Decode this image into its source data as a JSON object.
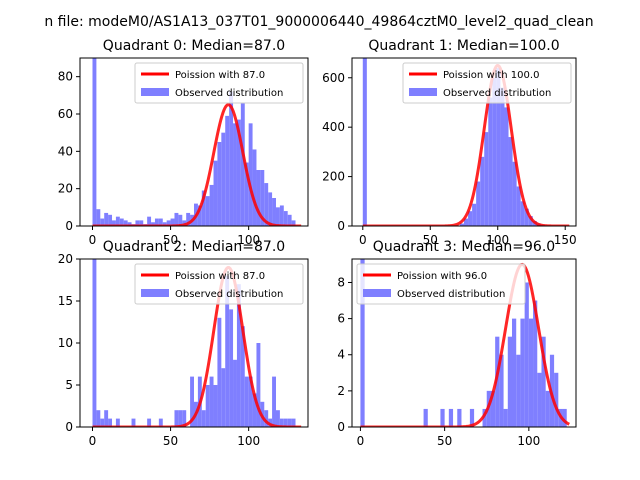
{
  "figure": {
    "suptitle": "n file: modeM0/AS1A13_037T01_9000006440_49864cztM0_level2_quad_clean"
  },
  "colors": {
    "histogram": "#7f7fff",
    "poisson": "#ff0000",
    "axes": "#000000"
  },
  "chart_data": [
    {
      "type": "bar",
      "title": "Quadrant 0: Median=87.0",
      "legend": {
        "position": "upper-right",
        "entries": [
          "Poission with 87.0",
          "Observed distribution"
        ]
      },
      "poisson_mean": 87.0,
      "poisson_peak": 65,
      "poisson_sigma": 9.3,
      "xlim": [
        -8,
        138
      ],
      "ylim": [
        0,
        90
      ],
      "xticks": [
        "0",
        "50",
        "100"
      ],
      "yticks": [
        "0",
        "20",
        "40",
        "60",
        "80"
      ],
      "xtick_values": [
        0,
        50,
        100
      ],
      "ytick_values": [
        0,
        20,
        40,
        60,
        80
      ],
      "bin_width": 2.5,
      "bins": [
        [
          0,
          90
        ],
        [
          2.5,
          9
        ],
        [
          5,
          4
        ],
        [
          7.5,
          7
        ],
        [
          10,
          6
        ],
        [
          12.5,
          3
        ],
        [
          15,
          5
        ],
        [
          17.5,
          4
        ],
        [
          20,
          3
        ],
        [
          22.5,
          2
        ],
        [
          25,
          1
        ],
        [
          27.5,
          3
        ],
        [
          30,
          3
        ],
        [
          32.5,
          1
        ],
        [
          35,
          5
        ],
        [
          37.5,
          2
        ],
        [
          40,
          4
        ],
        [
          42.5,
          4
        ],
        [
          45,
          2
        ],
        [
          47.5,
          3
        ],
        [
          50,
          4
        ],
        [
          52.5,
          7
        ],
        [
          55,
          6
        ],
        [
          57.5,
          3
        ],
        [
          60,
          7
        ],
        [
          62.5,
          6
        ],
        [
          65,
          12
        ],
        [
          67.5,
          11
        ],
        [
          70,
          19
        ],
        [
          72.5,
          16
        ],
        [
          75,
          22
        ],
        [
          77.5,
          35
        ],
        [
          80,
          45
        ],
        [
          82.5,
          50
        ],
        [
          85,
          59
        ],
        [
          87.5,
          72
        ],
        [
          90,
          55
        ],
        [
          92.5,
          57
        ],
        [
          95,
          66
        ],
        [
          97.5,
          34
        ],
        [
          100,
          55
        ],
        [
          102.5,
          41
        ],
        [
          105,
          30
        ],
        [
          107.5,
          30
        ],
        [
          110,
          23
        ],
        [
          112.5,
          18
        ],
        [
          115,
          15
        ],
        [
          117.5,
          10
        ],
        [
          120,
          11
        ],
        [
          122.5,
          8
        ],
        [
          125,
          6
        ],
        [
          127.5,
          3
        ]
      ]
    },
    {
      "type": "bar",
      "title": "Quadrant 1: Median=100.0",
      "legend": {
        "position": "upper-right",
        "entries": [
          "Poission with 100.0",
          "Observed distribution"
        ]
      },
      "poisson_mean": 100.0,
      "poisson_peak": 650,
      "poisson_sigma": 10.0,
      "xlim": [
        -8,
        158
      ],
      "ylim": [
        0,
        680
      ],
      "xticks": [
        "0",
        "50",
        "100",
        "150"
      ],
      "yticks": [
        "0",
        "200",
        "400",
        "600"
      ],
      "xtick_values": [
        0,
        50,
        100,
        150
      ],
      "ytick_values": [
        0,
        200,
        400,
        600
      ],
      "bin_width": 3,
      "bins": [
        [
          0,
          680
        ],
        [
          72,
          10
        ],
        [
          75,
          30
        ],
        [
          78,
          60
        ],
        [
          81,
          90
        ],
        [
          84,
          180
        ],
        [
          87,
          280
        ],
        [
          90,
          380
        ],
        [
          93,
          520
        ],
        [
          96,
          600
        ],
        [
          99,
          640
        ],
        [
          102,
          560
        ],
        [
          105,
          480
        ],
        [
          108,
          360
        ],
        [
          111,
          260
        ],
        [
          114,
          160
        ],
        [
          117,
          100
        ],
        [
          120,
          70
        ],
        [
          123,
          40
        ],
        [
          126,
          20
        ],
        [
          129,
          10
        ],
        [
          132,
          5
        ]
      ]
    },
    {
      "type": "bar",
      "title": "Quadrant 2: Median=87.0",
      "legend": {
        "position": "upper-right",
        "entries": [
          "Poission with 87.0",
          "Observed distribution"
        ]
      },
      "poisson_mean": 87.0,
      "poisson_peak": 19,
      "poisson_sigma": 9.3,
      "xlim": [
        -8,
        138
      ],
      "ylim": [
        0,
        20
      ],
      "xticks": [
        "0",
        "50",
        "100"
      ],
      "yticks": [
        "0",
        "5",
        "10",
        "15",
        "20"
      ],
      "xtick_values": [
        0,
        50,
        100
      ],
      "ytick_values": [
        0,
        5,
        10,
        15,
        20
      ],
      "bin_width": 2.5,
      "bins": [
        [
          0,
          20
        ],
        [
          2.5,
          2
        ],
        [
          5,
          1
        ],
        [
          7.5,
          2
        ],
        [
          10,
          1
        ],
        [
          15,
          1
        ],
        [
          25,
          1
        ],
        [
          35,
          1
        ],
        [
          42.5,
          1
        ],
        [
          52.5,
          2
        ],
        [
          55,
          2
        ],
        [
          57.5,
          2
        ],
        [
          62.5,
          6
        ],
        [
          65,
          3
        ],
        [
          67.5,
          6
        ],
        [
          70,
          2
        ],
        [
          72.5,
          5
        ],
        [
          75,
          6
        ],
        [
          77.5,
          5
        ],
        [
          80,
          13
        ],
        [
          82.5,
          7
        ],
        [
          85,
          18
        ],
        [
          87.5,
          14
        ],
        [
          90,
          8
        ],
        [
          92.5,
          17
        ],
        [
          95,
          12
        ],
        [
          97.5,
          6
        ],
        [
          100,
          6
        ],
        [
          102.5,
          4
        ],
        [
          105,
          10
        ],
        [
          107.5,
          3
        ],
        [
          110,
          2
        ],
        [
          112.5,
          1
        ],
        [
          115,
          6
        ],
        [
          117.5,
          2
        ],
        [
          120,
          1
        ],
        [
          122.5,
          1
        ],
        [
          125,
          1
        ],
        [
          127.5,
          1
        ]
      ]
    },
    {
      "type": "bar",
      "title": "Quadrant 3: Median=96.0",
      "legend": {
        "position": "upper-left",
        "entries": [
          "Poission with 96.0",
          "Observed distribution"
        ]
      },
      "poisson_mean": 96.0,
      "poisson_peak": 9,
      "poisson_sigma": 9.8,
      "xlim": [
        -5,
        128
      ],
      "ylim": [
        0,
        9.3
      ],
      "xticks": [
        "0",
        "50",
        "100"
      ],
      "yticks": [
        "0",
        "2",
        "4",
        "6",
        "8"
      ],
      "xtick_values": [
        0,
        50,
        100
      ],
      "ytick_values": [
        0,
        2,
        4,
        6,
        8
      ],
      "bin_width": 2.5,
      "bins": [
        [
          0,
          9.3
        ],
        [
          37.5,
          1
        ],
        [
          47.5,
          1
        ],
        [
          52.5,
          1
        ],
        [
          57.5,
          1
        ],
        [
          65,
          1
        ],
        [
          72.5,
          1
        ],
        [
          75,
          2
        ],
        [
          77.5,
          2
        ],
        [
          80,
          5
        ],
        [
          82.5,
          4
        ],
        [
          85,
          1
        ],
        [
          87.5,
          5
        ],
        [
          90,
          6
        ],
        [
          92.5,
          4
        ],
        [
          95,
          6
        ],
        [
          97.5,
          8
        ],
        [
          100,
          6
        ],
        [
          102.5,
          7
        ],
        [
          105,
          3
        ],
        [
          107.5,
          5
        ],
        [
          110,
          2
        ],
        [
          112.5,
          4
        ],
        [
          115,
          3
        ],
        [
          117.5,
          1
        ],
        [
          120,
          1
        ]
      ]
    }
  ]
}
